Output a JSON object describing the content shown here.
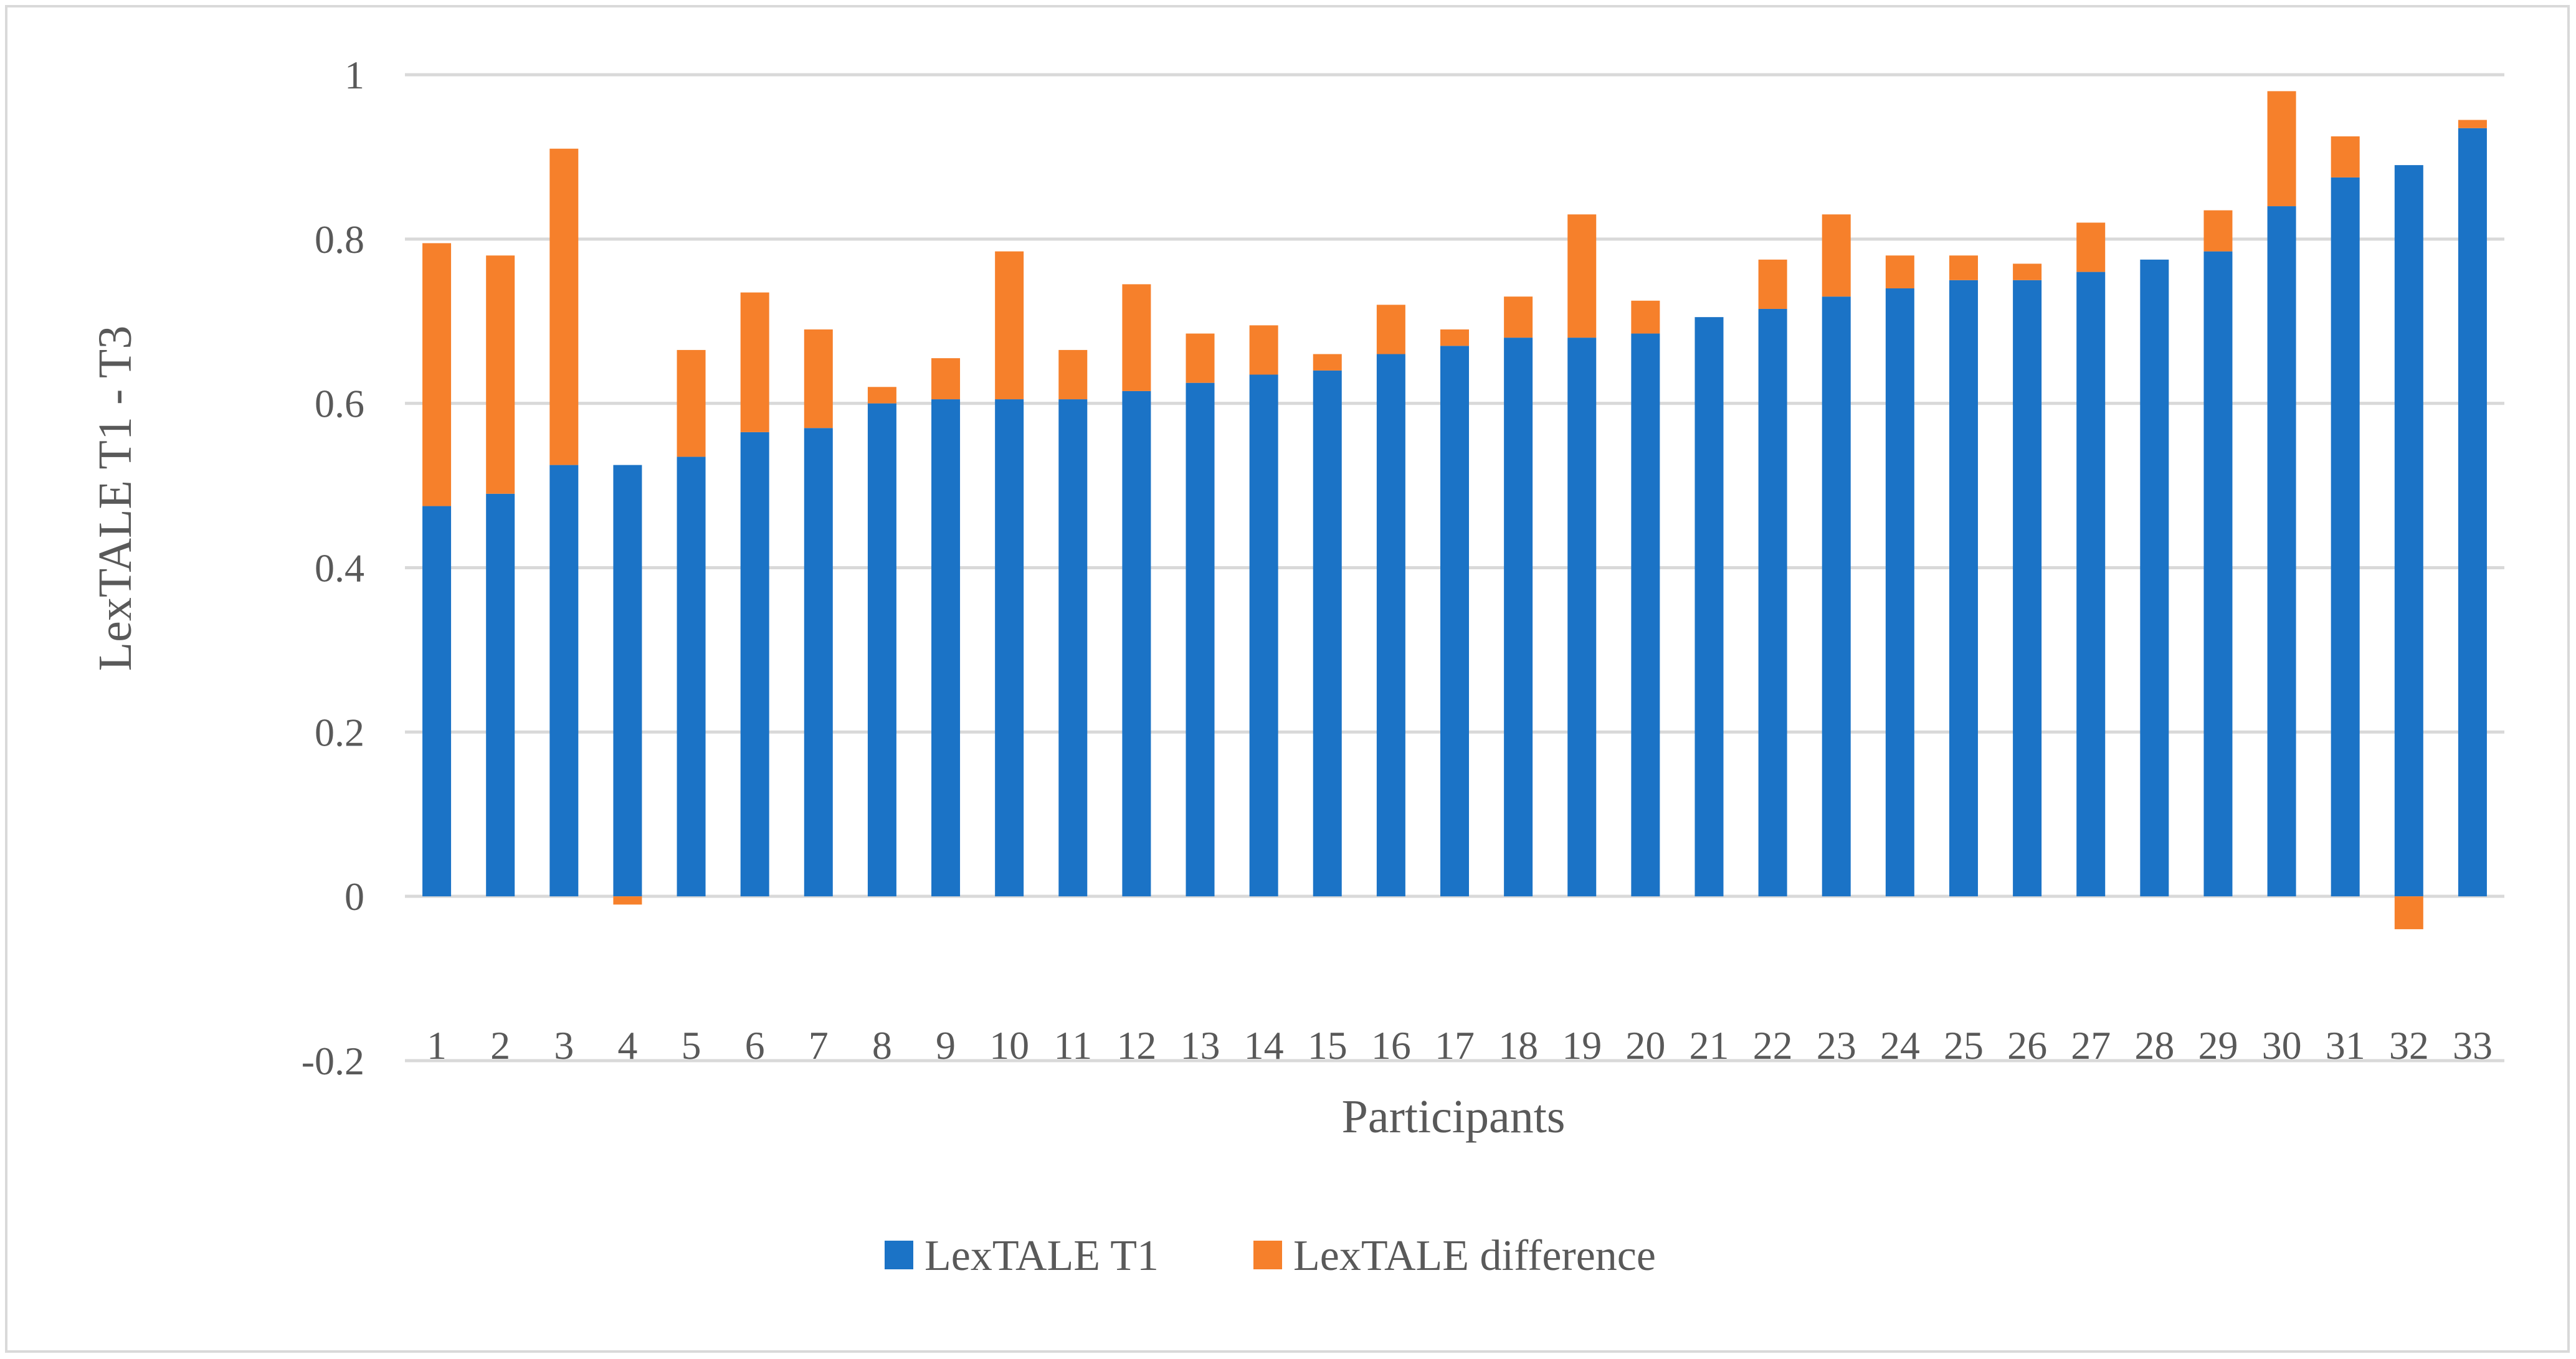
{
  "chart_data": {
    "type": "bar",
    "stacked": true,
    "title": "",
    "xlabel": "Participants",
    "ylabel": "LexTALE  T1 - T3",
    "ylim": [
      -0.2,
      1
    ],
    "yticks": [
      -0.2,
      0,
      0.2,
      0.4,
      0.6,
      0.8,
      1
    ],
    "ytick_labels": [
      "-0.2",
      "0",
      "0.2",
      "0.4",
      "0.6",
      "0.8",
      "1"
    ],
    "grid": true,
    "legend_position": "bottom",
    "categories": [
      "1",
      "2",
      "3",
      "4",
      "5",
      "6",
      "7",
      "8",
      "9",
      "10",
      "11",
      "12",
      "13",
      "14",
      "15",
      "16",
      "17",
      "18",
      "19",
      "20",
      "21",
      "22",
      "23",
      "24",
      "25",
      "26",
      "27",
      "28",
      "29",
      "30",
      "31",
      "32",
      "33"
    ],
    "series": [
      {
        "name": "LexTALE T1",
        "color": "#1b73c6",
        "values": [
          0.475,
          0.49,
          0.525,
          0.525,
          0.535,
          0.565,
          0.57,
          0.6,
          0.605,
          0.605,
          0.605,
          0.615,
          0.625,
          0.635,
          0.64,
          0.66,
          0.67,
          0.68,
          0.68,
          0.685,
          0.705,
          0.715,
          0.73,
          0.74,
          0.75,
          0.75,
          0.76,
          0.775,
          0.785,
          0.84,
          0.875,
          0.89,
          0.935
        ]
      },
      {
        "name": "LexTALE difference",
        "color": "#f6802b",
        "values": [
          0.32,
          0.29,
          0.385,
          -0.01,
          0.13,
          0.17,
          0.12,
          0.02,
          0.05,
          0.18,
          0.06,
          0.13,
          0.06,
          0.06,
          0.02,
          0.06,
          0.02,
          0.05,
          0.15,
          0.04,
          0.0,
          0.06,
          0.1,
          0.04,
          0.03,
          0.02,
          0.06,
          0.0,
          0.05,
          0.14,
          0.05,
          -0.04,
          0.01
        ]
      }
    ]
  }
}
